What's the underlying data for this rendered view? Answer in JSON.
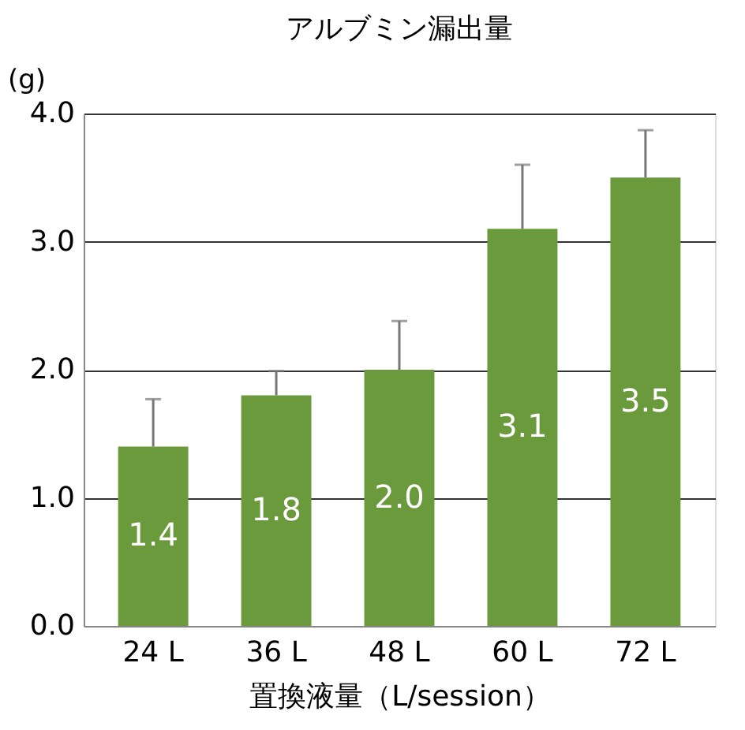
{
  "chart_data": {
    "type": "bar",
    "title": "アルブミン漏出量",
    "ylabel": "(g)",
    "xlabel": "置換液量（L/session）",
    "categories": [
      "24 L",
      "36 L",
      "48 L",
      "60 L",
      "72 L"
    ],
    "values": [
      1.4,
      1.8,
      2.0,
      3.1,
      3.5
    ],
    "color": "#6a9a3c",
    "errors": [
      [
        1.4,
        1.77
      ],
      [
        1.8,
        1.99
      ],
      [
        2.0,
        2.38
      ],
      [
        3.1,
        3.6
      ],
      [
        3.5,
        3.87
      ]
    ],
    "ylim": [
      0,
      4
    ],
    "yticks": [
      {
        "value": 0,
        "label": "0.0"
      },
      {
        "value": 1,
        "label": "1.0"
      },
      {
        "value": 2,
        "label": "2.0"
      },
      {
        "value": 3,
        "label": "3.0"
      },
      {
        "value": 4,
        "label": "4.0"
      }
    ],
    "grid": "y",
    "value_labels": [
      "1.4",
      "1.8",
      "2.0",
      "3.1",
      "3.5"
    ]
  }
}
